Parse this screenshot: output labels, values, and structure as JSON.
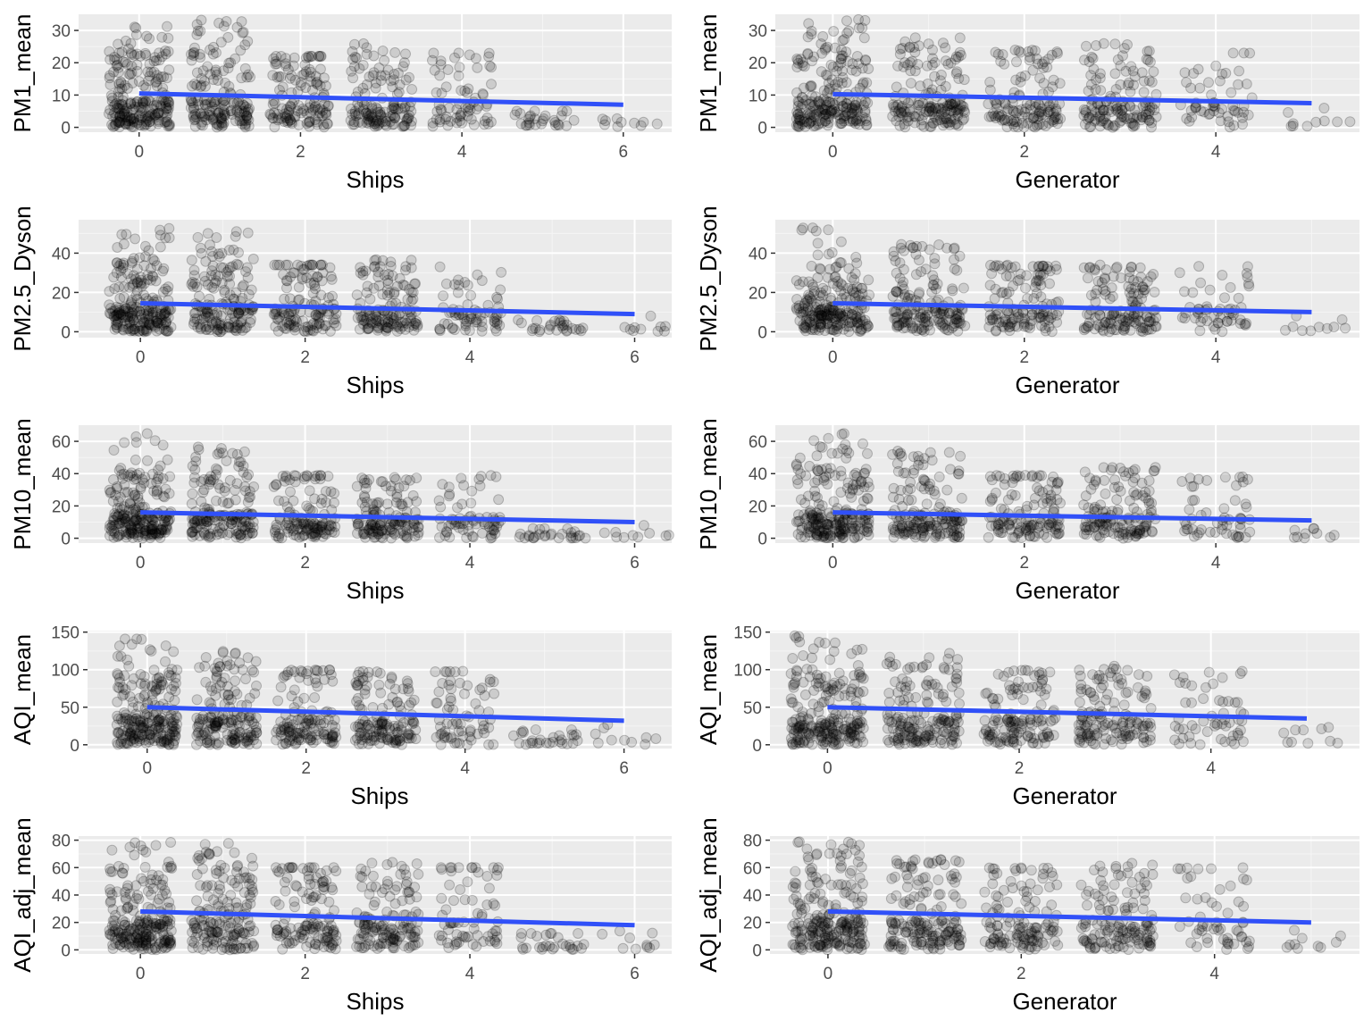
{
  "colors": {
    "panel_background": "#ebebeb",
    "grid_major": "#ffffff",
    "grid_minor": "#f5f5f5",
    "point": "#000000",
    "fit_line": "#3050f8",
    "tick_text": "#4d4d4d",
    "title_text": "#000000"
  },
  "chart_data": [
    {
      "type": "scatter",
      "xlabel": "Ships",
      "ylabel": "PM1_mean",
      "xlim": [
        -0.75,
        6.6
      ],
      "ylim": [
        -1.5,
        35
      ],
      "xticks": [
        0,
        2,
        4,
        6
      ],
      "yticks": [
        0,
        10,
        20,
        30
      ],
      "fit_line": {
        "x": [
          0,
          6
        ],
        "y": [
          10.5,
          7.0
        ]
      },
      "clusters": [
        {
          "x": 0,
          "y_max": 32,
          "bulk_max": 24,
          "n": 230
        },
        {
          "x": 1,
          "y_max": 34,
          "bulk_max": 24,
          "n": 170
        },
        {
          "x": 2,
          "y_max": 22,
          "bulk_max": 22,
          "n": 130
        },
        {
          "x": 3,
          "y_max": 26,
          "bulk_max": 21,
          "n": 140
        },
        {
          "x": 4,
          "y_max": 23,
          "bulk_max": 23,
          "n": 70
        },
        {
          "x": 5,
          "y_max": 5,
          "bulk_max": 5,
          "n": 28
        },
        {
          "x": 6,
          "y_max": 6,
          "bulk_max": 6,
          "n": 10
        }
      ]
    },
    {
      "type": "scatter",
      "xlabel": "Generator",
      "ylabel": "PM1_mean",
      "xlim": [
        -0.6,
        5.5
      ],
      "ylim": [
        -1.5,
        35
      ],
      "xticks": [
        0,
        2,
        4
      ],
      "yticks": [
        0,
        10,
        20,
        30
      ],
      "fit_line": {
        "x": [
          0,
          5
        ],
        "y": [
          10.3,
          7.5
        ]
      },
      "clusters": [
        {
          "x": 0,
          "y_max": 34,
          "bulk_max": 24,
          "n": 230
        },
        {
          "x": 1,
          "y_max": 28,
          "bulk_max": 25,
          "n": 170
        },
        {
          "x": 2,
          "y_max": 24,
          "bulk_max": 22,
          "n": 130
        },
        {
          "x": 3,
          "y_max": 26,
          "bulk_max": 23,
          "n": 140
        },
        {
          "x": 4,
          "y_max": 23,
          "bulk_max": 23,
          "n": 55
        },
        {
          "x": 5,
          "y_max": 6,
          "bulk_max": 6,
          "n": 10
        }
      ]
    },
    {
      "type": "scatter",
      "xlabel": "Ships",
      "ylabel": "PM2.5_Dyson",
      "xlim": [
        -0.75,
        6.45
      ],
      "ylim": [
        -3,
        57
      ],
      "xticks": [
        0,
        2,
        4,
        6
      ],
      "yticks": [
        0,
        20,
        40
      ],
      "fit_line": {
        "x": [
          0,
          6
        ],
        "y": [
          14.5,
          9.0
        ]
      },
      "clusters": [
        {
          "x": 0,
          "y_max": 54,
          "bulk_max": 36,
          "n": 230
        },
        {
          "x": 1,
          "y_max": 51,
          "bulk_max": 40,
          "n": 170
        },
        {
          "x": 2,
          "y_max": 34,
          "bulk_max": 34,
          "n": 130
        },
        {
          "x": 3,
          "y_max": 37,
          "bulk_max": 32,
          "n": 140
        },
        {
          "x": 4,
          "y_max": 33,
          "bulk_max": 33,
          "n": 70
        },
        {
          "x": 5,
          "y_max": 6,
          "bulk_max": 6,
          "n": 28
        },
        {
          "x": 6,
          "y_max": 8,
          "bulk_max": 8,
          "n": 10
        }
      ]
    },
    {
      "type": "scatter",
      "xlabel": "Generator",
      "ylabel": "PM2.5_Dyson",
      "xlim": [
        -0.6,
        5.5
      ],
      "ylim": [
        -3,
        57
      ],
      "xticks": [
        0,
        2,
        4
      ],
      "yticks": [
        0,
        20,
        40
      ],
      "fit_line": {
        "x": [
          0,
          5
        ],
        "y": [
          14.5,
          10.0
        ]
      },
      "clusters": [
        {
          "x": 0,
          "y_max": 54,
          "bulk_max": 36,
          "n": 230
        },
        {
          "x": 1,
          "y_max": 45,
          "bulk_max": 38,
          "n": 170
        },
        {
          "x": 2,
          "y_max": 34,
          "bulk_max": 33,
          "n": 130
        },
        {
          "x": 3,
          "y_max": 34,
          "bulk_max": 32,
          "n": 140
        },
        {
          "x": 4,
          "y_max": 34,
          "bulk_max": 33,
          "n": 55
        },
        {
          "x": 5,
          "y_max": 8,
          "bulk_max": 8,
          "n": 10
        }
      ]
    },
    {
      "type": "scatter",
      "xlabel": "Ships",
      "ylabel": "PM10_mean",
      "xlim": [
        -0.75,
        6.45
      ],
      "ylim": [
        -3,
        70
      ],
      "xticks": [
        0,
        2,
        4,
        6
      ],
      "yticks": [
        0,
        20,
        40,
        60
      ],
      "fit_line": {
        "x": [
          0,
          6
        ],
        "y": [
          16.0,
          10.0
        ]
      },
      "clusters": [
        {
          "x": 0,
          "y_max": 66,
          "bulk_max": 45,
          "n": 230
        },
        {
          "x": 1,
          "y_max": 58,
          "bulk_max": 48,
          "n": 170
        },
        {
          "x": 2,
          "y_max": 39,
          "bulk_max": 38,
          "n": 130
        },
        {
          "x": 3,
          "y_max": 38,
          "bulk_max": 35,
          "n": 140
        },
        {
          "x": 4,
          "y_max": 39,
          "bulk_max": 38,
          "n": 70
        },
        {
          "x": 5,
          "y_max": 6,
          "bulk_max": 6,
          "n": 28
        },
        {
          "x": 6,
          "y_max": 8,
          "bulk_max": 8,
          "n": 10
        }
      ]
    },
    {
      "type": "scatter",
      "xlabel": "Generator",
      "ylabel": "PM10_mean",
      "xlim": [
        -0.6,
        5.5
      ],
      "ylim": [
        -3,
        70
      ],
      "xticks": [
        0,
        2,
        4
      ],
      "yticks": [
        0,
        20,
        40,
        60
      ],
      "fit_line": {
        "x": [
          0,
          5
        ],
        "y": [
          16.0,
          11.0
        ]
      },
      "clusters": [
        {
          "x": 0,
          "y_max": 66,
          "bulk_max": 45,
          "n": 230
        },
        {
          "x": 1,
          "y_max": 55,
          "bulk_max": 45,
          "n": 170
        },
        {
          "x": 2,
          "y_max": 39,
          "bulk_max": 38,
          "n": 130
        },
        {
          "x": 3,
          "y_max": 44,
          "bulk_max": 38,
          "n": 140
        },
        {
          "x": 4,
          "y_max": 38,
          "bulk_max": 37,
          "n": 55
        },
        {
          "x": 5,
          "y_max": 8,
          "bulk_max": 8,
          "n": 10
        }
      ]
    },
    {
      "type": "scatter",
      "xlabel": "Ships",
      "ylabel": "AQI_mean",
      "xlim": [
        -0.75,
        6.6
      ],
      "ylim": [
        -5,
        152
      ],
      "xticks": [
        0,
        2,
        4,
        6
      ],
      "yticks": [
        0,
        50,
        100,
        150
      ],
      "fit_line": {
        "x": [
          0,
          6
        ],
        "y": [
          50,
          32
        ]
      },
      "clusters": [
        {
          "x": 0,
          "y_max": 146,
          "bulk_max": 100,
          "n": 230
        },
        {
          "x": 1,
          "y_max": 125,
          "bulk_max": 110,
          "n": 170
        },
        {
          "x": 2,
          "y_max": 100,
          "bulk_max": 98,
          "n": 130
        },
        {
          "x": 3,
          "y_max": 98,
          "bulk_max": 95,
          "n": 140
        },
        {
          "x": 4,
          "y_max": 98,
          "bulk_max": 97,
          "n": 70
        },
        {
          "x": 5,
          "y_max": 20,
          "bulk_max": 20,
          "n": 28
        },
        {
          "x": 6,
          "y_max": 30,
          "bulk_max": 30,
          "n": 10
        }
      ]
    },
    {
      "type": "scatter",
      "xlabel": "Generator",
      "ylabel": "AQI_mean",
      "xlim": [
        -0.6,
        5.55
      ],
      "ylim": [
        -5,
        152
      ],
      "xticks": [
        0,
        2,
        4
      ],
      "yticks": [
        0,
        50,
        100,
        150
      ],
      "fit_line": {
        "x": [
          0,
          5
        ],
        "y": [
          50,
          35
        ]
      },
      "clusters": [
        {
          "x": 0,
          "y_max": 146,
          "bulk_max": 100,
          "n": 230
        },
        {
          "x": 1,
          "y_max": 125,
          "bulk_max": 105,
          "n": 170
        },
        {
          "x": 2,
          "y_max": 100,
          "bulk_max": 98,
          "n": 130
        },
        {
          "x": 3,
          "y_max": 105,
          "bulk_max": 97,
          "n": 140
        },
        {
          "x": 4,
          "y_max": 98,
          "bulk_max": 96,
          "n": 55
        },
        {
          "x": 5,
          "y_max": 30,
          "bulk_max": 30,
          "n": 10
        }
      ]
    },
    {
      "type": "scatter",
      "xlabel": "Ships",
      "ylabel": "AQI_adj_mean",
      "xlim": [
        -0.75,
        6.45
      ],
      "ylim": [
        -3,
        83
      ],
      "xticks": [
        0,
        2,
        4,
        6
      ],
      "yticks": [
        0,
        20,
        40,
        60,
        80
      ],
      "fit_line": {
        "x": [
          0,
          6
        ],
        "y": [
          28,
          18
        ]
      },
      "clusters": [
        {
          "x": 0,
          "y_max": 80,
          "bulk_max": 62,
          "n": 230
        },
        {
          "x": 1,
          "y_max": 79,
          "bulk_max": 65,
          "n": 170
        },
        {
          "x": 2,
          "y_max": 60,
          "bulk_max": 60,
          "n": 130
        },
        {
          "x": 3,
          "y_max": 64,
          "bulk_max": 58,
          "n": 140
        },
        {
          "x": 4,
          "y_max": 60,
          "bulk_max": 60,
          "n": 70
        },
        {
          "x": 5,
          "y_max": 12,
          "bulk_max": 12,
          "n": 28
        },
        {
          "x": 6,
          "y_max": 15,
          "bulk_max": 15,
          "n": 10
        }
      ]
    },
    {
      "type": "scatter",
      "xlabel": "Generator",
      "ylabel": "AQI_adj_mean",
      "xlim": [
        -0.6,
        5.5
      ],
      "ylim": [
        -3,
        83
      ],
      "xticks": [
        0,
        2,
        4
      ],
      "yticks": [
        0,
        20,
        40,
        60,
        80
      ],
      "fit_line": {
        "x": [
          0,
          5
        ],
        "y": [
          28,
          20
        ]
      },
      "clusters": [
        {
          "x": 0,
          "y_max": 80,
          "bulk_max": 62,
          "n": 230
        },
        {
          "x": 1,
          "y_max": 66,
          "bulk_max": 63,
          "n": 170
        },
        {
          "x": 2,
          "y_max": 60,
          "bulk_max": 59,
          "n": 130
        },
        {
          "x": 3,
          "y_max": 64,
          "bulk_max": 60,
          "n": 140
        },
        {
          "x": 4,
          "y_max": 60,
          "bulk_max": 59,
          "n": 55
        },
        {
          "x": 5,
          "y_max": 15,
          "bulk_max": 15,
          "n": 10
        }
      ]
    }
  ]
}
